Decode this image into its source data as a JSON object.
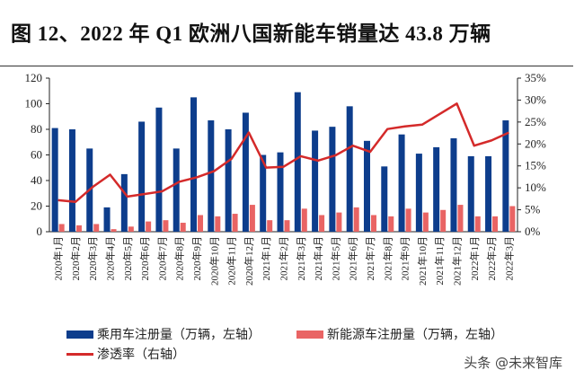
{
  "chart_data": {
    "type": "bar",
    "title": "图 12、2022 年 Q1 欧洲八国新能车销量达 43.8 万辆",
    "categories": [
      "2020年1月",
      "2020年2月",
      "2020年3月",
      "2020年4月",
      "2020年5月",
      "2020年6月",
      "2020年7月",
      "2020年8月",
      "2020年9月",
      "2020年10月",
      "2020年11月",
      "2020年12月",
      "2021年1月",
      "2021年2月",
      "2021年3月",
      "2021年4月",
      "2021年5月",
      "2021年6月",
      "2021年7月",
      "2021年8月",
      "2021年9月",
      "2021年10月",
      "2021年11月",
      "2021年12月",
      "2022年1月",
      "2022年2月",
      "2022年3月"
    ],
    "series": [
      {
        "name": "乘用车注册量（万辆，左轴）",
        "type": "bar",
        "axis": "left",
        "color": "#0d3d8c",
        "values": [
          81,
          80,
          65,
          19,
          45,
          86,
          97,
          65,
          105,
          87,
          80,
          93,
          60,
          62,
          109,
          79,
          82,
          98,
          71,
          51,
          76,
          61,
          66,
          73,
          59,
          59,
          87
        ]
      },
      {
        "name": "新能源车注册量（万辆，左轴）",
        "type": "bar",
        "axis": "left",
        "color": "#e96464",
        "values": [
          6,
          5,
          6,
          2,
          4,
          8,
          9,
          7,
          13,
          12,
          14,
          21,
          9,
          9,
          18,
          13,
          15,
          19,
          13,
          12,
          18,
          15,
          17,
          21,
          12,
          12,
          20
        ]
      },
      {
        "name": "渗透率（右轴）",
        "type": "line",
        "axis": "right",
        "color": "#d42a2a",
        "values": [
          7.2,
          6.8,
          10.2,
          13.0,
          8.0,
          8.6,
          9.2,
          11.4,
          12.4,
          13.8,
          16.6,
          22.6,
          14.6,
          14.8,
          17.2,
          16.2,
          17.4,
          19.6,
          18.2,
          23.4,
          24.0,
          24.4,
          26.8,
          29.2,
          19.6,
          20.8,
          22.6
        ]
      }
    ],
    "ylim_left": [
      0,
      120
    ],
    "yticks_left": [
      "0",
      "20",
      "40",
      "60",
      "80",
      "100",
      "120"
    ],
    "ylim_right": [
      0,
      35
    ],
    "yticks_right": [
      "0%",
      "5%",
      "10%",
      "15%",
      "20%",
      "25%",
      "30%",
      "35%"
    ],
    "grid": false,
    "legend_placement": "bottom"
  },
  "watermark": "头条 @未来智库"
}
